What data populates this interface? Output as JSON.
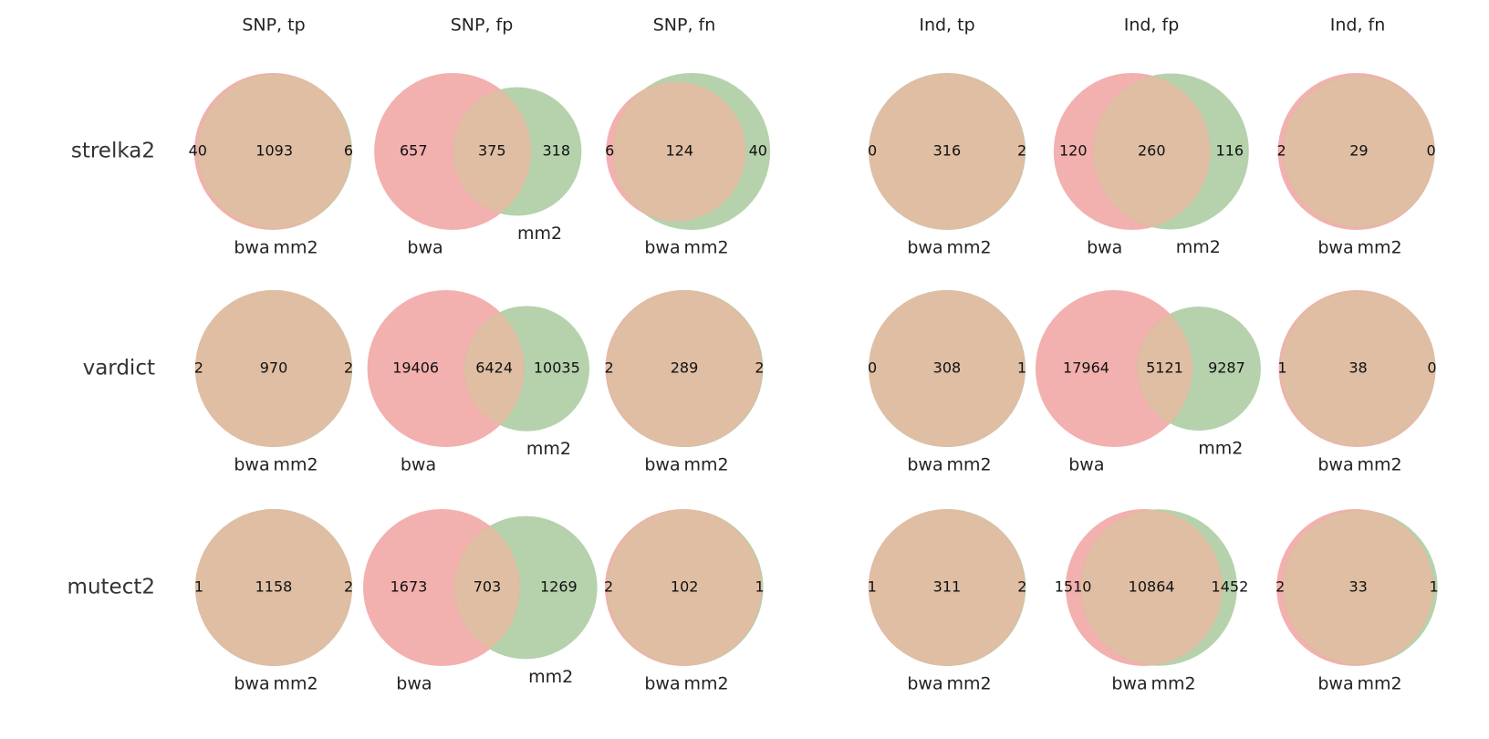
{
  "colors": {
    "bwa": "#e8706b",
    "mm2": "#78ad67",
    "overlap": "#dfbea3"
  },
  "chart_data": {
    "type": "venn2-grid",
    "columns": [
      "SNP, tp",
      "SNP, fp",
      "SNP, fn",
      "Ind, tp",
      "Ind, fp",
      "Ind, fn"
    ],
    "rows": [
      "strelka2",
      "vardict",
      "mutect2"
    ],
    "set_labels": [
      "bwa",
      "mm2"
    ],
    "panels": [
      [
        {
          "bwa_only": 40,
          "shared": 1093,
          "mm2_only": 6
        },
        {
          "bwa_only": 657,
          "shared": 375,
          "mm2_only": 318
        },
        {
          "bwa_only": 6,
          "shared": 124,
          "mm2_only": 40
        },
        {
          "bwa_only": 0,
          "shared": 316,
          "mm2_only": 2
        },
        {
          "bwa_only": 120,
          "shared": 260,
          "mm2_only": 116
        },
        {
          "bwa_only": 2,
          "shared": 29,
          "mm2_only": 0
        }
      ],
      [
        {
          "bwa_only": 2,
          "shared": 970,
          "mm2_only": 2
        },
        {
          "bwa_only": 19406,
          "shared": 6424,
          "mm2_only": 10035
        },
        {
          "bwa_only": 2,
          "shared": 289,
          "mm2_only": 2
        },
        {
          "bwa_only": 0,
          "shared": 308,
          "mm2_only": 1
        },
        {
          "bwa_only": 17964,
          "shared": 5121,
          "mm2_only": 9287
        },
        {
          "bwa_only": 1,
          "shared": 38,
          "mm2_only": 0
        }
      ],
      [
        {
          "bwa_only": 1,
          "shared": 1158,
          "mm2_only": 2
        },
        {
          "bwa_only": 1673,
          "shared": 703,
          "mm2_only": 1269
        },
        {
          "bwa_only": 2,
          "shared": 102,
          "mm2_only": 1
        },
        {
          "bwa_only": 1,
          "shared": 311,
          "mm2_only": 2
        },
        {
          "bwa_only": 1510,
          "shared": 10864,
          "mm2_only": 1452
        },
        {
          "bwa_only": 2,
          "shared": 33,
          "mm2_only": 1
        }
      ]
    ]
  }
}
